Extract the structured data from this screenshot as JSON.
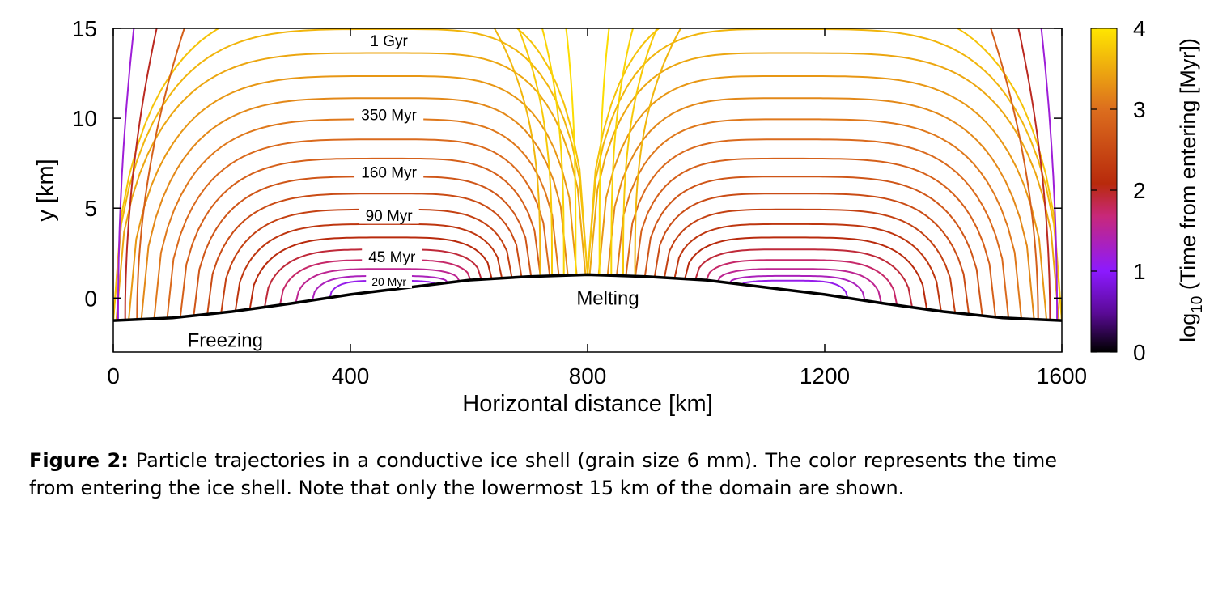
{
  "chart_data": {
    "type": "line",
    "xlabel": "Horizontal distance [km]",
    "ylabel": "y [km]",
    "xlim": [
      0,
      1600
    ],
    "ylim": [
      -3,
      15
    ],
    "x_ticks": [
      "0",
      "400",
      "800",
      "1200",
      "1600"
    ],
    "y_ticks": [
      "0",
      "5",
      "10",
      "15"
    ],
    "colorbar": {
      "label_prefix": "log",
      "label_sub": "10",
      "label_suffix": " (Time from entering [Myr])",
      "ticks": [
        "0",
        "1",
        "2",
        "3",
        "4"
      ],
      "range": [
        0,
        4
      ],
      "colors": [
        "#000000",
        "#5a0a96",
        "#8c1aff",
        "#c8287a",
        "#b82a0c",
        "#dc6e1e",
        "#ffe600"
      ]
    },
    "boundary": {
      "x": [
        0,
        100,
        200,
        300,
        400,
        500,
        600,
        700,
        800,
        900,
        1000,
        1100,
        1200,
        1300,
        1400,
        1500,
        1600
      ],
      "y": [
        -1.25,
        -1.1,
        -0.75,
        -0.3,
        0.2,
        0.6,
        1.0,
        1.2,
        1.3,
        1.2,
        1.0,
        0.6,
        0.2,
        -0.3,
        -0.75,
        -1.1,
        -1.25
      ]
    },
    "region_labels": {
      "melting": "Melting",
      "freezing": "Freezing"
    },
    "isochrons": [
      {
        "label": "20 Myr",
        "x": 465,
        "y": 0.9
      },
      {
        "label": "45 Myr",
        "x": 470,
        "y": 2.3
      },
      {
        "label": "90 Myr",
        "x": 465,
        "y": 4.6
      },
      {
        "label": "160 Myr",
        "x": 465,
        "y": 7.0
      },
      {
        "label": "350 Myr",
        "x": 465,
        "y": 10.2
      },
      {
        "label": "1 Gyr",
        "x": 465,
        "y": 14.3
      }
    ]
  },
  "caption": {
    "label": "Figure 2:",
    "text": " Particle trajectories in a conductive ice shell (grain size 6 mm). The color represents the time from entering the ice shell. Note that only the lowermost 15 km of the domain are shown."
  }
}
